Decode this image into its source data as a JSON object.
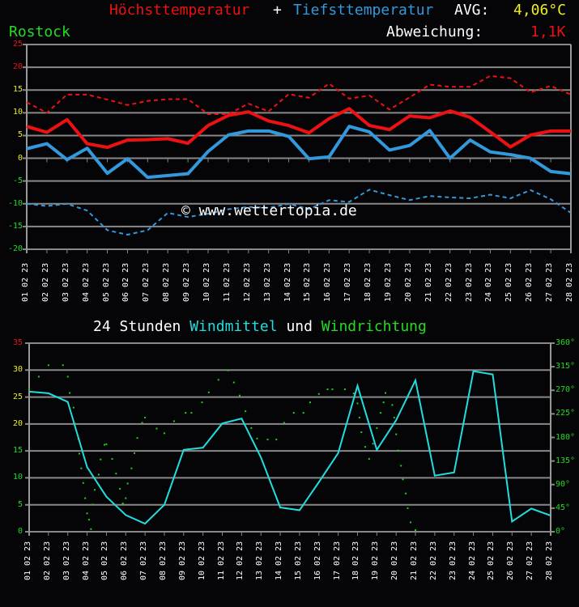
{
  "header": {
    "title_max": "Höchsttemperatur",
    "title_plus": "+",
    "title_min": "Tiefsttemperatur",
    "avg_label": "AVG:",
    "avg_value": "4,06°C",
    "station": "Rostock",
    "deviation_label": "Abweichung:",
    "deviation_value": "1,1K"
  },
  "watermark": "© www.wettertopia.de",
  "wind_header": {
    "part1": "24 Stunden",
    "part2": "Windmittel",
    "part3": "und",
    "part4": "Windrichtung"
  },
  "colors": {
    "max": "#ee1111",
    "min": "#3399dd",
    "wind": "#22dddd",
    "direction": "#22cc22",
    "station": "#22dd22",
    "avg": "#eeee22",
    "grid": "#888888"
  },
  "chart_data": [
    {
      "type": "line",
      "title": "Höchsttemperatur + Tiefsttemperatur",
      "xlabel": "",
      "ylabel": "°C",
      "ylim": [
        -20,
        25
      ],
      "yticks": [
        25,
        20,
        15,
        10,
        5,
        0,
        -5,
        -10,
        -15,
        -20
      ],
      "grid": true,
      "x": [
        "01.02.23",
        "02.02.23",
        "03.02.23",
        "04.02.23",
        "05.02.23",
        "06.02.23",
        "07.02.23",
        "08.02.23",
        "09.02.23",
        "10.02.23",
        "11.02.23",
        "12.02.23",
        "13.02.23",
        "14.02.23",
        "15.02.23",
        "16.02.23",
        "17.02.23",
        "18.02.23",
        "19.02.23",
        "20.02.23",
        "21.02.23",
        "22.02.23",
        "23.02.23",
        "24.02.23",
        "25.02.23",
        "26.02.23",
        "27.02.23",
        "28.02.23"
      ],
      "series": [
        {
          "name": "Höchsttemperatur",
          "style": "solid",
          "color": "#ee1111",
          "values": [
            7.0,
            5.7,
            8.5,
            3.2,
            2.4,
            4.0,
            4.1,
            4.3,
            3.3,
            7.2,
            9.4,
            10.2,
            8.2,
            7.2,
            5.6,
            8.7,
            10.9,
            7.2,
            6.3,
            9.3,
            8.9,
            10.4,
            9.0,
            5.8,
            2.5,
            5.1,
            6.0,
            6.0
          ]
        },
        {
          "name": "Tiefsttemperatur",
          "style": "solid",
          "color": "#3399dd",
          "values": [
            2.1,
            3.2,
            -0.3,
            2.2,
            -3.3,
            -0.1,
            -4.2,
            -3.8,
            -3.4,
            1.5,
            5.1,
            6.0,
            6.0,
            4.8,
            -0.1,
            0.3,
            7.0,
            5.8,
            1.8,
            2.8,
            6.1,
            0.0,
            4.0,
            1.4,
            0.8,
            0.0,
            -2.9,
            -3.4
          ]
        },
        {
          "name": "Höchsttemperatur Mittel",
          "style": "dashed",
          "color": "#ee1111",
          "values": [
            12.3,
            10.0,
            14.0,
            14.0,
            12.9,
            11.7,
            12.6,
            13.0,
            13.0,
            9.7,
            9.7,
            12.0,
            10.3,
            14.1,
            13.3,
            16.4,
            13.1,
            13.8,
            10.7,
            13.4,
            16.2,
            15.7,
            15.7,
            18.1,
            17.6,
            14.5,
            15.9,
            14.0
          ]
        },
        {
          "name": "Tiefsttemperatur Mittel",
          "style": "dashed",
          "color": "#3399dd",
          "values": [
            -10.0,
            -10.5,
            -10.0,
            -11.5,
            -15.8,
            -16.8,
            -15.8,
            -12.0,
            -12.9,
            -12.2,
            -11.2,
            -10.7,
            -10.9,
            -10.0,
            -11.2,
            -9.2,
            -9.6,
            -6.9,
            -8.1,
            -9.2,
            -8.3,
            -8.6,
            -8.8,
            -8.0,
            -8.8,
            -7.0,
            -9.0,
            -12.0
          ]
        }
      ]
    },
    {
      "type": "line",
      "title": "24 Stunden Windmittel und Windrichtung",
      "xlabel": "",
      "ylabel": "Windmittel",
      "ylabel_right": "Windrichtung",
      "ylim": [
        0,
        35
      ],
      "yticks": [
        35,
        30,
        25,
        20,
        15,
        10,
        5,
        0
      ],
      "ylim_right": [
        0,
        360
      ],
      "yticks_right": [
        "360°",
        "315°",
        "270°",
        "225°",
        "180°",
        "135°",
        "90°",
        "45°",
        "0°"
      ],
      "grid": true,
      "x": [
        "01.02.23",
        "02.02.23",
        "03.02.23",
        "04.02.23",
        "05.02.23",
        "06.02.23",
        "07.02.23",
        "08.02.23",
        "09.02.23",
        "10.02.23",
        "11.02.23",
        "12.02.23",
        "13.02.23",
        "14.02.23",
        "15.02.23",
        "16.02.23",
        "17.02.23",
        "18.02.23",
        "19.02.23",
        "20.02.23",
        "21.02.23",
        "22.02.23",
        "23.02.23",
        "24.02.23",
        "25.02.23",
        "26.02.23",
        "27.02.23",
        "28.02.23"
      ],
      "series": [
        {
          "name": "Windmittel",
          "color": "#22dddd",
          "values": [
            26.0,
            25.7,
            24.1,
            12.0,
            6.5,
            3.1,
            1.5,
            5.0,
            15.2,
            15.6,
            20.1,
            21.0,
            13.8,
            4.5,
            4.0,
            9.2,
            14.6,
            27.1,
            15.2,
            20.7,
            28.1,
            10.4,
            11.0,
            29.8,
            29.2,
            1.9,
            4.3,
            3.0
          ]
        },
        {
          "name": "Windrichtung",
          "color": "#22cc22",
          "style": "dots",
          "unit": "°",
          "points": [
            [
              0.0,
              272
            ],
            [
              0.5,
              296
            ],
            [
              1.0,
              318
            ],
            [
              1.75,
              318
            ],
            [
              2.0,
              296
            ],
            [
              2.1,
              265
            ],
            [
              2.3,
              237
            ],
            [
              2.4,
              206
            ],
            [
              2.55,
              177
            ],
            [
              2.6,
              149
            ],
            [
              2.7,
              121
            ],
            [
              2.8,
              93
            ],
            [
              2.9,
              64
            ],
            [
              3.0,
              35
            ],
            [
              3.1,
              23
            ],
            [
              3.2,
              5
            ],
            [
              3.3,
              52
            ],
            [
              3.4,
              80
            ],
            [
              3.6,
              109
            ],
            [
              3.7,
              138
            ],
            [
              3.9,
              166
            ],
            [
              4.0,
              167
            ],
            [
              4.3,
              139
            ],
            [
              4.5,
              111
            ],
            [
              4.7,
              82
            ],
            [
              4.85,
              54
            ],
            [
              5.0,
              64
            ],
            [
              5.1,
              92
            ],
            [
              5.3,
              121
            ],
            [
              5.45,
              150
            ],
            [
              5.6,
              179
            ],
            [
              5.85,
              208
            ],
            [
              6.0,
              218
            ],
            [
              6.6,
              197
            ],
            [
              7.0,
              188
            ],
            [
              7.5,
              211
            ],
            [
              8.1,
              227
            ],
            [
              8.4,
              227
            ],
            [
              8.95,
              247
            ],
            [
              9.3,
              266
            ],
            [
              9.8,
              290
            ],
            [
              10.3,
              308
            ],
            [
              10.6,
              285
            ],
            [
              10.9,
              260
            ],
            [
              11.2,
              230
            ],
            [
              11.5,
              198
            ],
            [
              11.8,
              178
            ],
            [
              12.35,
              176
            ],
            [
              12.8,
              176
            ],
            [
              13.2,
              208
            ],
            [
              13.7,
              227
            ],
            [
              14.2,
              227
            ],
            [
              14.55,
              247
            ],
            [
              15.0,
              263
            ],
            [
              15.45,
              272
            ],
            [
              15.7,
              272
            ],
            [
              16.35,
              272
            ],
            [
              16.8,
              264
            ],
            [
              17.0,
              245
            ],
            [
              17.1,
              218
            ],
            [
              17.2,
              190
            ],
            [
              17.4,
              162
            ],
            [
              17.6,
              139
            ],
            [
              17.8,
              168
            ],
            [
              18.0,
              198
            ],
            [
              18.2,
              227
            ],
            [
              18.35,
              247
            ],
            [
              18.45,
              265
            ],
            [
              18.8,
              242
            ],
            [
              18.9,
              218
            ],
            [
              19.0,
              186
            ],
            [
              19.1,
              155
            ],
            [
              19.25,
              126
            ],
            [
              19.35,
              100
            ],
            [
              19.5,
              73
            ],
            [
              19.6,
              45
            ],
            [
              19.75,
              18
            ],
            [
              20.0,
              3
            ]
          ]
        }
      ]
    }
  ]
}
